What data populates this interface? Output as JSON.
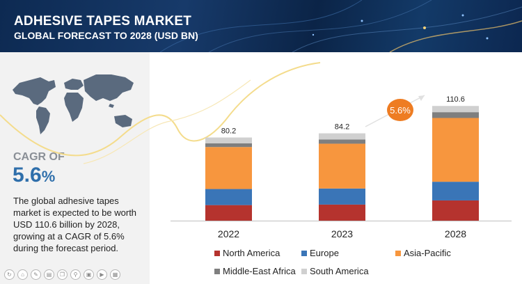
{
  "header": {
    "title": "ADHESIVE TAPES MARKET",
    "subtitle": "GLOBAL FORECAST TO 2028 (USD BN)"
  },
  "left_panel": {
    "cagr_label": "CAGR OF",
    "cagr_value": "5.6",
    "cagr_unit": "%",
    "description": "The global adhesive tapes market is expected to be worth USD 110.6 billion by 2028, growing at a CAGR of 5.6% during the forecast period."
  },
  "colors": {
    "north_america": "#b5332e",
    "europe": "#3a75b7",
    "asia_pacific": "#f7963e",
    "middle_east_africa": "#7f7f7f",
    "south_america": "#d0d0d0",
    "badge": "#ee7c22"
  },
  "chart_data": {
    "type": "bar",
    "stacked": true,
    "categories": [
      "2022",
      "2023",
      "2028"
    ],
    "totals_labels": [
      "80.2",
      "84.2",
      "110.6"
    ],
    "series": [
      {
        "name": "North America",
        "values": [
          15.0,
          15.5,
          19.5
        ],
        "color": "#b5332e"
      },
      {
        "name": "Europe",
        "values": [
          15.5,
          15.5,
          18.0
        ],
        "color": "#3a75b7"
      },
      {
        "name": "Asia-Pacific",
        "values": [
          40.5,
          43.2,
          61.5
        ],
        "color": "#f7963e"
      },
      {
        "name": "Middle-East Africa",
        "values": [
          3.5,
          4.0,
          5.6
        ],
        "color": "#7f7f7f"
      },
      {
        "name": "South America",
        "values": [
          5.7,
          6.0,
          6.0
        ],
        "color": "#d0d0d0"
      }
    ],
    "cagr_badge": "5.6%",
    "ylim": [
      0,
      120
    ],
    "grid": false,
    "legend_position": "bottom"
  }
}
